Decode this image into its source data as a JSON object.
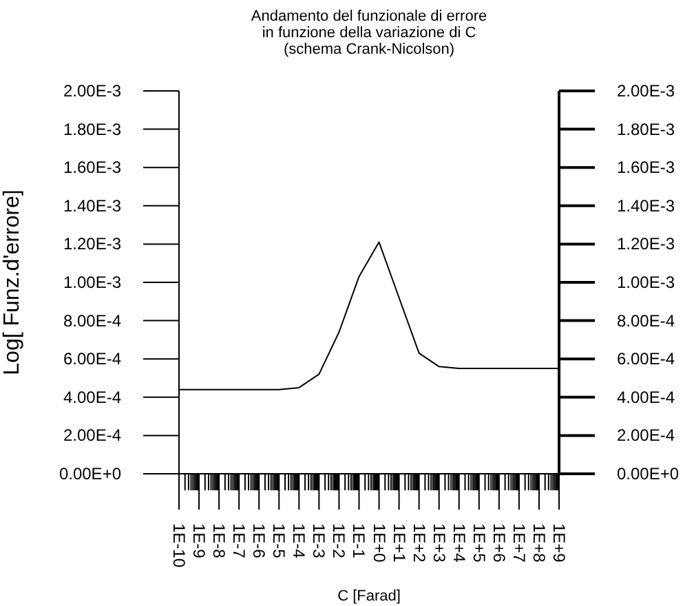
{
  "chart_data": {
    "type": "line",
    "title": "Andamento del funzionale di errore\nin funzione della variazione di C\n(schema Crank-Nicolson)",
    "xlabel": "C [Farad]",
    "ylabel": "Log[ Funz.d'errore]",
    "log": "x",
    "x": [
      1e-10,
      1e-09,
      1e-08,
      1e-07,
      1e-06,
      1e-05,
      0.0001,
      0.001,
      0.01,
      0.1,
      1,
      10,
      100,
      1000,
      10000,
      100000,
      1000000,
      10000000,
      100000000,
      1000000000
    ],
    "series": [
      {
        "color": "#000000",
        "values": [
          0.00044,
          0.00044,
          0.00044,
          0.00044,
          0.00044,
          0.00044,
          0.00045,
          0.00052,
          0.00074,
          0.00103,
          0.00121,
          0.00092,
          0.00063,
          0.00056,
          0.00055,
          0.00055,
          0.00055,
          0.00055,
          0.00055,
          0.00055
        ]
      }
    ],
    "xlim": [
      1e-10,
      1000000000.0
    ],
    "xticks": [
      {
        "value": 1e-10,
        "label": "1E-10"
      },
      {
        "value": 1e-09,
        "label": "1E-9"
      },
      {
        "value": 1e-08,
        "label": "1E-8"
      },
      {
        "value": 1e-07,
        "label": "1E-7"
      },
      {
        "value": 1e-06,
        "label": "1E-6"
      },
      {
        "value": 1e-05,
        "label": "1E-5"
      },
      {
        "value": 0.0001,
        "label": "1E-4"
      },
      {
        "value": 0.001,
        "label": "1E-3"
      },
      {
        "value": 0.01,
        "label": "1E-2"
      },
      {
        "value": 0.1,
        "label": "1E-1"
      },
      {
        "value": 1,
        "label": "1E+0"
      },
      {
        "value": 10,
        "label": "1E+1"
      },
      {
        "value": 100,
        "label": "1E+2"
      },
      {
        "value": 1000,
        "label": "1E+3"
      },
      {
        "value": 10000,
        "label": "1E+4"
      },
      {
        "value": 100000,
        "label": "1E+5"
      },
      {
        "value": 1000000,
        "label": "1E+6"
      },
      {
        "value": 10000000,
        "label": "1E+7"
      },
      {
        "value": 100000000,
        "label": "1E+8"
      },
      {
        "value": 1000000000,
        "label": "1E+9"
      },
      {
        "value": 2e-10,
        "label": null
      },
      {
        "value": 3e-10,
        "label": null
      },
      {
        "value": 4e-10,
        "label": null
      },
      {
        "value": 5e-10,
        "label": null
      },
      {
        "value": 6e-10,
        "label": null
      },
      {
        "value": 7e-10,
        "label": null
      },
      {
        "value": 8e-10,
        "label": null
      },
      {
        "value": 9e-10,
        "label": null
      },
      {
        "value": 2e-09,
        "label": null
      },
      {
        "value": 3e-09,
        "label": null
      },
      {
        "value": 4e-09,
        "label": null
      },
      {
        "value": 5e-09,
        "label": null
      },
      {
        "value": 6e-09,
        "label": null
      },
      {
        "value": 7e-09,
        "label": null
      },
      {
        "value": 8e-09,
        "label": null
      },
      {
        "value": 9e-09,
        "label": null
      },
      {
        "value": 2e-08,
        "label": null
      },
      {
        "value": 3e-08,
        "label": null
      },
      {
        "value": 4e-08,
        "label": null
      },
      {
        "value": 5e-08,
        "label": null
      },
      {
        "value": 6e-08,
        "label": null
      },
      {
        "value": 7e-08,
        "label": null
      },
      {
        "value": 8e-08,
        "label": null
      },
      {
        "value": 9e-08,
        "label": null
      },
      {
        "value": 2e-07,
        "label": null
      },
      {
        "value": 3e-07,
        "label": null
      },
      {
        "value": 4e-07,
        "label": null
      },
      {
        "value": 5e-07,
        "label": null
      },
      {
        "value": 6e-07,
        "label": null
      },
      {
        "value": 7e-07,
        "label": null
      },
      {
        "value": 8e-07,
        "label": null
      },
      {
        "value": 9e-07,
        "label": null
      },
      {
        "value": 2e-06,
        "label": null
      },
      {
        "value": 3e-06,
        "label": null
      },
      {
        "value": 4e-06,
        "label": null
      },
      {
        "value": 5e-06,
        "label": null
      },
      {
        "value": 6e-06,
        "label": null
      },
      {
        "value": 7e-06,
        "label": null
      },
      {
        "value": 8e-06,
        "label": null
      },
      {
        "value": 9e-06,
        "label": null
      },
      {
        "value": 2e-05,
        "label": null
      },
      {
        "value": 3e-05,
        "label": null
      },
      {
        "value": 4e-05,
        "label": null
      },
      {
        "value": 5e-05,
        "label": null
      },
      {
        "value": 6e-05,
        "label": null
      },
      {
        "value": 7e-05,
        "label": null
      },
      {
        "value": 8e-05,
        "label": null
      },
      {
        "value": 9e-05,
        "label": null
      },
      {
        "value": 0.0002,
        "label": null
      },
      {
        "value": 0.0003,
        "label": null
      },
      {
        "value": 0.0004,
        "label": null
      },
      {
        "value": 0.0005,
        "label": null
      },
      {
        "value": 0.0006,
        "label": null
      },
      {
        "value": 0.0007,
        "label": null
      },
      {
        "value": 0.0008,
        "label": null
      },
      {
        "value": 0.0009,
        "label": null
      },
      {
        "value": 0.002,
        "label": null
      },
      {
        "value": 0.003,
        "label": null
      },
      {
        "value": 0.004,
        "label": null
      },
      {
        "value": 0.005,
        "label": null
      },
      {
        "value": 0.006,
        "label": null
      },
      {
        "value": 0.007,
        "label": null
      },
      {
        "value": 0.008,
        "label": null
      },
      {
        "value": 0.009,
        "label": null
      },
      {
        "value": 0.02,
        "label": null
      },
      {
        "value": 0.03,
        "label": null
      },
      {
        "value": 0.04,
        "label": null
      },
      {
        "value": 0.05,
        "label": null
      },
      {
        "value": 0.06,
        "label": null
      },
      {
        "value": 0.07,
        "label": null
      },
      {
        "value": 0.08,
        "label": null
      },
      {
        "value": 0.09,
        "label": null
      },
      {
        "value": 0.2,
        "label": null
      },
      {
        "value": 0.3,
        "label": null
      },
      {
        "value": 0.4,
        "label": null
      },
      {
        "value": 0.5,
        "label": null
      },
      {
        "value": 0.6,
        "label": null
      },
      {
        "value": 0.7,
        "label": null
      },
      {
        "value": 0.8,
        "label": null
      },
      {
        "value": 0.9,
        "label": null
      },
      {
        "value": 2,
        "label": null
      },
      {
        "value": 3,
        "label": null
      },
      {
        "value": 4,
        "label": null
      },
      {
        "value": 5,
        "label": null
      },
      {
        "value": 6,
        "label": null
      },
      {
        "value": 7,
        "label": null
      },
      {
        "value": 8,
        "label": null
      },
      {
        "value": 9,
        "label": null
      },
      {
        "value": 20,
        "label": null
      },
      {
        "value": 30,
        "label": null
      },
      {
        "value": 40,
        "label": null
      },
      {
        "value": 50,
        "label": null
      },
      {
        "value": 60,
        "label": null
      },
      {
        "value": 70,
        "label": null
      },
      {
        "value": 80,
        "label": null
      },
      {
        "value": 90,
        "label": null
      },
      {
        "value": 200,
        "label": null
      },
      {
        "value": 300,
        "label": null
      },
      {
        "value": 400,
        "label": null
      },
      {
        "value": 500,
        "label": null
      },
      {
        "value": 600,
        "label": null
      },
      {
        "value": 700,
        "label": null
      },
      {
        "value": 800,
        "label": null
      },
      {
        "value": 900,
        "label": null
      },
      {
        "value": 2000,
        "label": null
      },
      {
        "value": 3000,
        "label": null
      },
      {
        "value": 4000,
        "label": null
      },
      {
        "value": 5000,
        "label": null
      },
      {
        "value": 6000,
        "label": null
      },
      {
        "value": 7000,
        "label": null
      },
      {
        "value": 8000,
        "label": null
      },
      {
        "value": 9000,
        "label": null
      },
      {
        "value": 20000,
        "label": null
      },
      {
        "value": 30000,
        "label": null
      },
      {
        "value": 40000,
        "label": null
      },
      {
        "value": 50000,
        "label": null
      },
      {
        "value": 60000,
        "label": null
      },
      {
        "value": 70000,
        "label": null
      },
      {
        "value": 80000,
        "label": null
      },
      {
        "value": 90000,
        "label": null
      },
      {
        "value": 200000,
        "label": null
      },
      {
        "value": 300000,
        "label": null
      },
      {
        "value": 400000,
        "label": null
      },
      {
        "value": 500000,
        "label": null
      },
      {
        "value": 600000,
        "label": null
      },
      {
        "value": 700000,
        "label": null
      },
      {
        "value": 800000,
        "label": null
      },
      {
        "value": 900000,
        "label": null
      },
      {
        "value": 2000000,
        "label": null
      },
      {
        "value": 3000000,
        "label": null
      },
      {
        "value": 4000000,
        "label": null
      },
      {
        "value": 5000000,
        "label": null
      },
      {
        "value": 6000000,
        "label": null
      },
      {
        "value": 7000000,
        "label": null
      },
      {
        "value": 8000000,
        "label": null
      },
      {
        "value": 9000000,
        "label": null
      },
      {
        "value": 20000000,
        "label": null
      },
      {
        "value": 30000000,
        "label": null
      },
      {
        "value": 40000000,
        "label": null
      },
      {
        "value": 50000000,
        "label": null
      },
      {
        "value": 60000000,
        "label": null
      },
      {
        "value": 70000000,
        "label": null
      },
      {
        "value": 80000000,
        "label": null
      },
      {
        "value": 90000000,
        "label": null
      },
      {
        "value": 200000000,
        "label": null
      },
      {
        "value": 300000000,
        "label": null
      },
      {
        "value": 400000000,
        "label": null
      },
      {
        "value": 500000000,
        "label": null
      },
      {
        "value": 600000000,
        "label": null
      },
      {
        "value": 700000000,
        "label": null
      },
      {
        "value": 800000000,
        "label": null
      },
      {
        "value": 900000000,
        "label": null
      }
    ],
    "ylim": [
      0,
      0.002
    ],
    "yticks": [
      {
        "value": 0,
        "label": "0.00E+0"
      },
      {
        "value": 0.0002,
        "label": "2.00E-4"
      },
      {
        "value": 0.0004,
        "label": "4.00E-4"
      },
      {
        "value": 0.0006,
        "label": "6.00E-4"
      },
      {
        "value": 0.0008,
        "label": "8.00E-4"
      },
      {
        "value": 0.001,
        "label": "1.00E-3"
      },
      {
        "value": 0.0012,
        "label": "1.20E-3"
      },
      {
        "value": 0.0014,
        "label": "1.40E-3"
      },
      {
        "value": 0.0016,
        "label": "1.60E-3"
      },
      {
        "value": 0.0018,
        "label": "1.80E-3"
      },
      {
        "value": 0.002,
        "label": "2.00E-3"
      }
    ],
    "y2lim": [
      0,
      0.002
    ],
    "y2ticks": [
      {
        "value": 0,
        "label": "0.00E+0"
      },
      {
        "value": 0.0002,
        "label": "2.00E-4"
      },
      {
        "value": 0.0004,
        "label": "4.00E-4"
      },
      {
        "value": 0.0006,
        "label": "6.00E-4"
      },
      {
        "value": 0.0008,
        "label": "8.00E-4"
      },
      {
        "value": 0.001,
        "label": "1.00E-3"
      },
      {
        "value": 0.0012,
        "label": "1.20E-3"
      },
      {
        "value": 0.0014,
        "label": "1.40E-3"
      },
      {
        "value": 0.0016,
        "label": "1.60E-3"
      },
      {
        "value": 0.0018,
        "label": "1.80E-3"
      },
      {
        "value": 0.002,
        "label": "2.00E-3"
      }
    ]
  }
}
